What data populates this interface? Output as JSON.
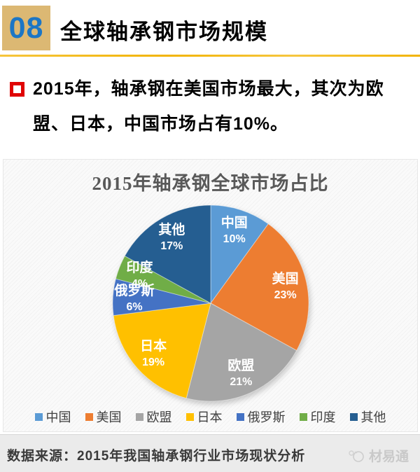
{
  "header": {
    "number": "08",
    "title": "全球轴承钢市场规模"
  },
  "bullet": {
    "lines": [
      "2015年，轴承钢在美国市场最大，其次为欧",
      "盟、日本，中国市场占有10%。"
    ]
  },
  "chart_data": {
    "type": "pie",
    "title": "2015年轴承钢全球市场占比",
    "categories": [
      "中国",
      "美国",
      "欧盟",
      "日本",
      "俄罗斯",
      "印度",
      "其他"
    ],
    "values": [
      10,
      23,
      21,
      19,
      6,
      4,
      17
    ],
    "unit": "%",
    "colors": [
      "#5B9BD5",
      "#ED7D31",
      "#A5A5A5",
      "#FFC000",
      "#4472C4",
      "#70AD47",
      "#255E91"
    ],
    "start_angle_deg": 0,
    "direction": "clockwise",
    "label_style": "category name + percent inside slices, white bold",
    "legend_position": "bottom"
  },
  "footer": {
    "source": "数据来源：2015年我国轴承钢行业市场现状分析",
    "watermark": "材易通"
  }
}
